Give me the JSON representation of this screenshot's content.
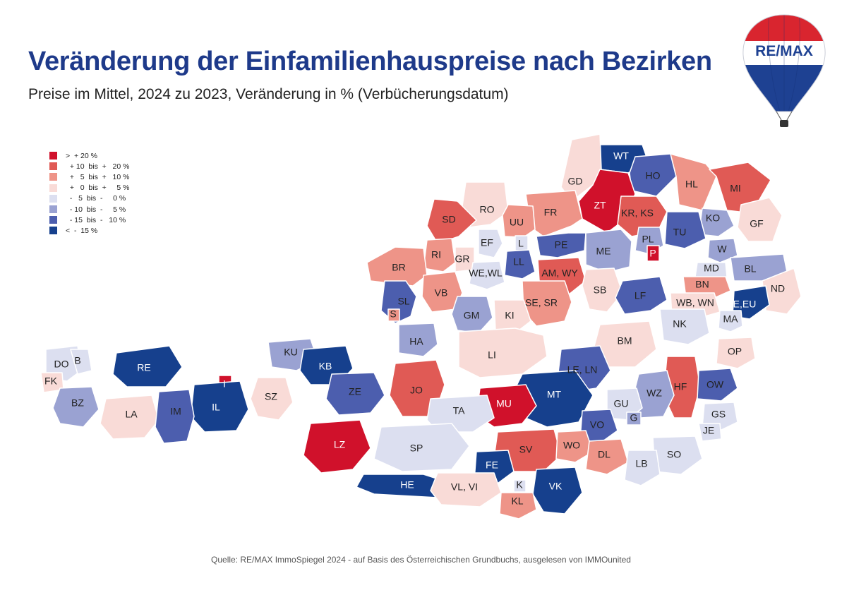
{
  "title": "Veränderung der Einfamilienhauspreise nach Bezirken",
  "subtitle": "Preise im Mittel, 2024 zu 2023, Veränderung in % (Verbücherungsdatum)",
  "source": "Quelle: RE/MAX ImmoSpiegel 2024 - auf Basis des Österreichischen Grundbuchs, ausgelesen von IMMOunited",
  "logo": {
    "text": "RE/MAX"
  },
  "legend": [
    {
      "key": "c1",
      "label": ">  + 20 %",
      "color": "#d0112b"
    },
    {
      "key": "c2",
      "label": "  + 10  bis  +   20 %",
      "color": "#e05a55"
    },
    {
      "key": "c3",
      "label": "  +   5  bis  +   10 %",
      "color": "#ee9488"
    },
    {
      "key": "c4",
      "label": "  +   0  bis  +     5 %",
      "color": "#f9dbd7"
    },
    {
      "key": "c5",
      "label": "  -   5  bis  -     0 %",
      "color": "#dcdff0"
    },
    {
      "key": "c6",
      "label": "  - 10  bis  -     5 %",
      "color": "#9aa2d2"
    },
    {
      "key": "c7",
      "label": "  - 15  bis  -   10 %",
      "color": "#4c5eae"
    },
    {
      "key": "c8",
      "label": "<  -  15 %",
      "color": "#16408d"
    }
  ],
  "districts": [
    {
      "code": "WT",
      "cls": "c8"
    },
    {
      "code": "HO",
      "cls": "c7"
    },
    {
      "code": "GD",
      "cls": "c4"
    },
    {
      "code": "ZT",
      "cls": "c1"
    },
    {
      "code": "HL",
      "cls": "c3"
    },
    {
      "code": "MI",
      "cls": "c2"
    },
    {
      "code": "RO",
      "cls": "c4"
    },
    {
      "code": "FR",
      "cls": "c3"
    },
    {
      "code": "KR, KS",
      "cls": "c2"
    },
    {
      "code": "SD",
      "cls": "c2"
    },
    {
      "code": "UU",
      "cls": "c3"
    },
    {
      "code": "KO",
      "cls": "c6"
    },
    {
      "code": "GF",
      "cls": "c4"
    },
    {
      "code": "EF",
      "cls": "c5"
    },
    {
      "code": "L",
      "cls": "c5"
    },
    {
      "code": "PE",
      "cls": "c7"
    },
    {
      "code": "TU",
      "cls": "c7"
    },
    {
      "code": "PL",
      "cls": "c6"
    },
    {
      "code": "P",
      "cls": "c1"
    },
    {
      "code": "RI",
      "cls": "c3"
    },
    {
      "code": "GR",
      "cls": "c4"
    },
    {
      "code": "ME",
      "cls": "c6"
    },
    {
      "code": "W",
      "cls": "c6"
    },
    {
      "code": "LL",
      "cls": "c7"
    },
    {
      "code": "WE,WL",
      "cls": "c5"
    },
    {
      "code": "AM, WY",
      "cls": "c2"
    },
    {
      "code": "MD",
      "cls": "c5"
    },
    {
      "code": "BL",
      "cls": "c6"
    },
    {
      "code": "BR",
      "cls": "c3"
    },
    {
      "code": "SB",
      "cls": "c4"
    },
    {
      "code": "BN",
      "cls": "c3"
    },
    {
      "code": "ND",
      "cls": "c4"
    },
    {
      "code": "VB",
      "cls": "c3"
    },
    {
      "code": "SL",
      "cls": "c7"
    },
    {
      "code": "SE, SR",
      "cls": "c3"
    },
    {
      "code": "LF",
      "cls": "c7"
    },
    {
      "code": "WB, WN",
      "cls": "c4"
    },
    {
      "code": "E,EU",
      "cls": "c8"
    },
    {
      "code": "S",
      "cls": "c3"
    },
    {
      "code": "GM",
      "cls": "c6"
    },
    {
      "code": "KI",
      "cls": "c4"
    },
    {
      "code": "NK",
      "cls": "c5"
    },
    {
      "code": "MA",
      "cls": "c5"
    },
    {
      "code": "HA",
      "cls": "c6"
    },
    {
      "code": "BM",
      "cls": "c4"
    },
    {
      "code": "DO",
      "cls": "c5"
    },
    {
      "code": "B",
      "cls": "c5"
    },
    {
      "code": "KU",
      "cls": "c6"
    },
    {
      "code": "OP",
      "cls": "c4"
    },
    {
      "code": "LI",
      "cls": "c4"
    },
    {
      "code": "RE",
      "cls": "c8"
    },
    {
      "code": "KB",
      "cls": "c8"
    },
    {
      "code": "LE, LN",
      "cls": "c7"
    },
    {
      "code": "FK",
      "cls": "c4"
    },
    {
      "code": "I",
      "cls": "c1"
    },
    {
      "code": "JO",
      "cls": "c2"
    },
    {
      "code": "HF",
      "cls": "c2"
    },
    {
      "code": "OW",
      "cls": "c7"
    },
    {
      "code": "WZ",
      "cls": "c6"
    },
    {
      "code": "ZE",
      "cls": "c7"
    },
    {
      "code": "SZ",
      "cls": "c4"
    },
    {
      "code": "MT",
      "cls": "c8"
    },
    {
      "code": "BZ",
      "cls": "c6"
    },
    {
      "code": "IL",
      "cls": "c8"
    },
    {
      "code": "MU",
      "cls": "c1"
    },
    {
      "code": "GU",
      "cls": "c5"
    },
    {
      "code": "LA",
      "cls": "c4"
    },
    {
      "code": "IM",
      "cls": "c7"
    },
    {
      "code": "TA",
      "cls": "c5"
    },
    {
      "code": "G",
      "cls": "c6"
    },
    {
      "code": "GS",
      "cls": "c5"
    },
    {
      "code": "VO",
      "cls": "c7"
    },
    {
      "code": "JE",
      "cls": "c5"
    },
    {
      "code": "LZ",
      "cls": "c1"
    },
    {
      "code": "SV",
      "cls": "c2"
    },
    {
      "code": "WO",
      "cls": "c3"
    },
    {
      "code": "SP",
      "cls": "c5"
    },
    {
      "code": "DL",
      "cls": "c3"
    },
    {
      "code": "SO",
      "cls": "c5"
    },
    {
      "code": "FE",
      "cls": "c8"
    },
    {
      "code": "LB",
      "cls": "c5"
    },
    {
      "code": "K",
      "cls": "c5"
    },
    {
      "code": "HE",
      "cls": "c8"
    },
    {
      "code": "VL, VI",
      "cls": "c4"
    },
    {
      "code": "VK",
      "cls": "c8"
    },
    {
      "code": "KL",
      "cls": "c3"
    }
  ]
}
